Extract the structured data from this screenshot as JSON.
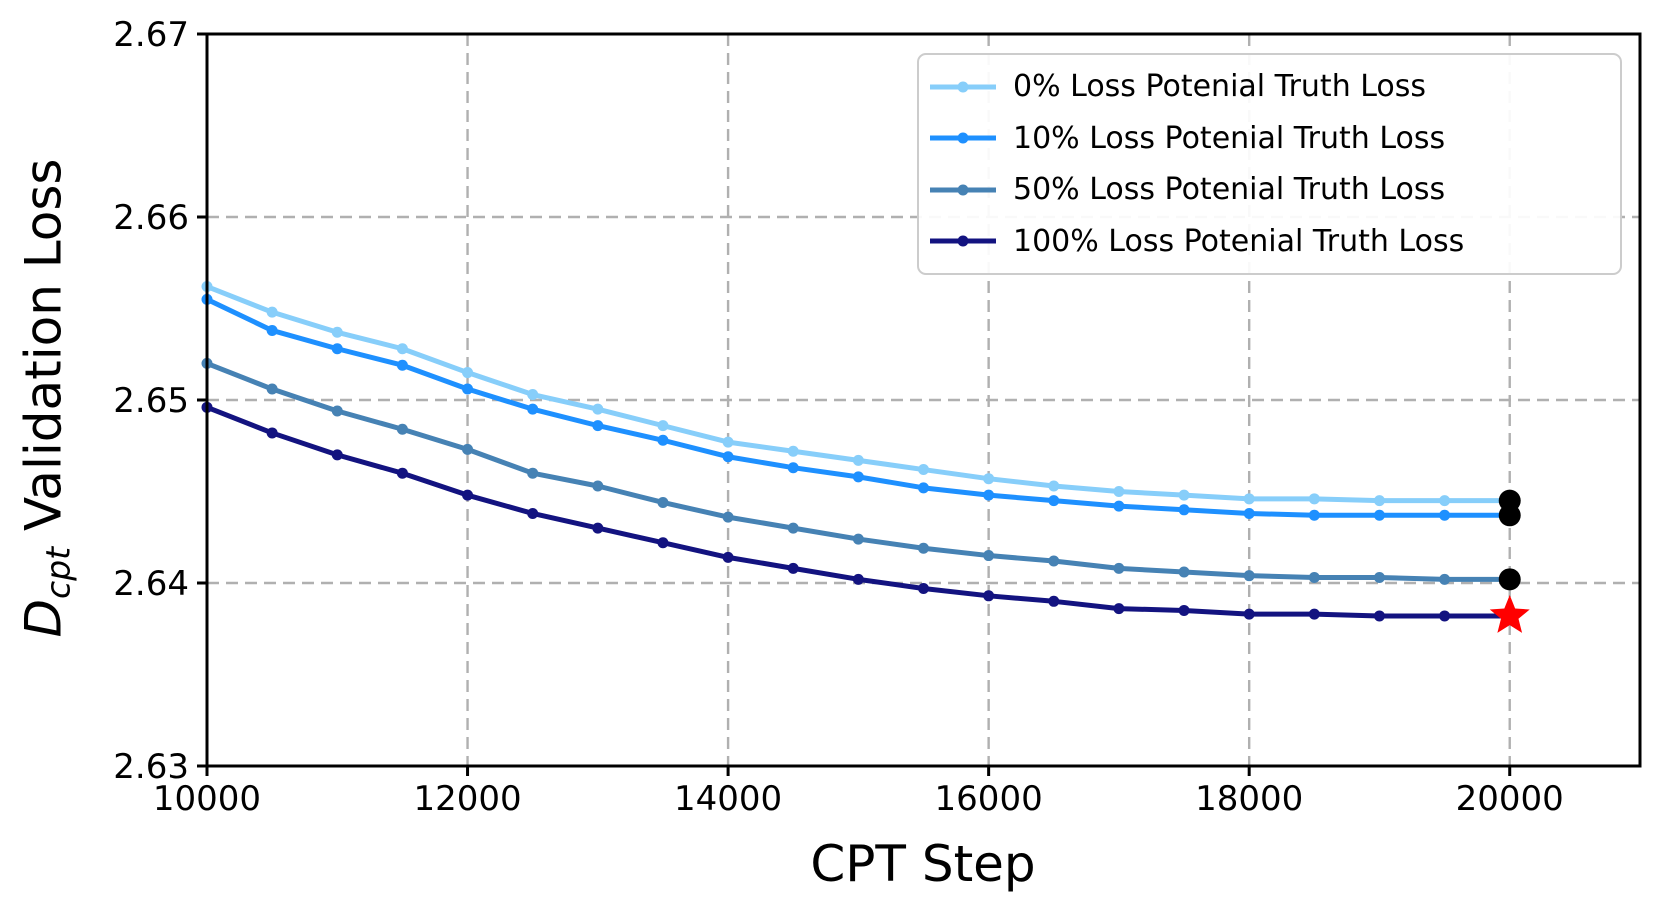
{
  "figure": {
    "background": "#ffffff",
    "axes_edge_color": "#000000",
    "grid_color": "#b0b0b0"
  },
  "chart_data": {
    "type": "line",
    "title": "",
    "xlabel": "CPT Step",
    "ylabel": "D_cpt Validation Loss",
    "ylabel_parts": {
      "var": "D",
      "sub": "cpt",
      "rest": " Validation Loss"
    },
    "xlim": [
      10000,
      21000
    ],
    "ylim": [
      2.63,
      2.67
    ],
    "xticks": [
      10000,
      12000,
      14000,
      16000,
      18000,
      20000
    ],
    "xtick_labels": [
      "10000",
      "12000",
      "14000",
      "16000",
      "18000",
      "20000"
    ],
    "yticks": [
      2.63,
      2.64,
      2.65,
      2.66,
      2.67
    ],
    "ytick_labels": [
      "2.63",
      "2.64",
      "2.65",
      "2.66",
      "2.67"
    ],
    "grid": true,
    "grid_style": "dashed",
    "legend_position": "upper right",
    "x": [
      10000,
      10500,
      11000,
      11500,
      12000,
      12500,
      13000,
      13500,
      14000,
      14500,
      15000,
      15500,
      16000,
      16500,
      17000,
      17500,
      18000,
      18500,
      19000,
      19500,
      20000
    ],
    "series": [
      {
        "name": "0% Loss Potenial Truth Loss",
        "color": "#87CEFA",
        "end_marker": "black-dot",
        "values": [
          2.6562,
          2.6548,
          2.6537,
          2.6528,
          2.6515,
          2.6503,
          2.6495,
          2.6486,
          2.6477,
          2.6472,
          2.6467,
          2.6462,
          2.6457,
          2.6453,
          2.645,
          2.6448,
          2.6446,
          2.6446,
          2.6445,
          2.6445,
          2.6445
        ]
      },
      {
        "name": "10% Loss Potenial Truth Loss",
        "color": "#1E90FF",
        "end_marker": "black-dot",
        "values": [
          2.6555,
          2.6538,
          2.6528,
          2.6519,
          2.6506,
          2.6495,
          2.6486,
          2.6478,
          2.6469,
          2.6463,
          2.6458,
          2.6452,
          2.6448,
          2.6445,
          2.6442,
          2.644,
          2.6438,
          2.6437,
          2.6437,
          2.6437,
          2.6437
        ]
      },
      {
        "name": "50% Loss Potenial Truth Loss",
        "color": "#4682B4",
        "end_marker": "black-dot",
        "values": [
          2.652,
          2.6506,
          2.6494,
          2.6484,
          2.6473,
          2.646,
          2.6453,
          2.6444,
          2.6436,
          2.643,
          2.6424,
          2.6419,
          2.6415,
          2.6412,
          2.6408,
          2.6406,
          2.6404,
          2.6403,
          2.6403,
          2.6402,
          2.6402
        ]
      },
      {
        "name": "100% Loss Potenial Truth Loss",
        "color": "#131380",
        "end_marker": "red-star",
        "values": [
          2.6496,
          2.6482,
          2.647,
          2.646,
          2.6448,
          2.6438,
          2.643,
          2.6422,
          2.6414,
          2.6408,
          2.6402,
          2.6397,
          2.6393,
          2.639,
          2.6386,
          2.6385,
          2.6383,
          2.6383,
          2.6382,
          2.6382,
          2.6382
        ]
      }
    ],
    "end_marker_colors": {
      "black-dot": "#000000",
      "red-star": "#FF0000"
    }
  }
}
